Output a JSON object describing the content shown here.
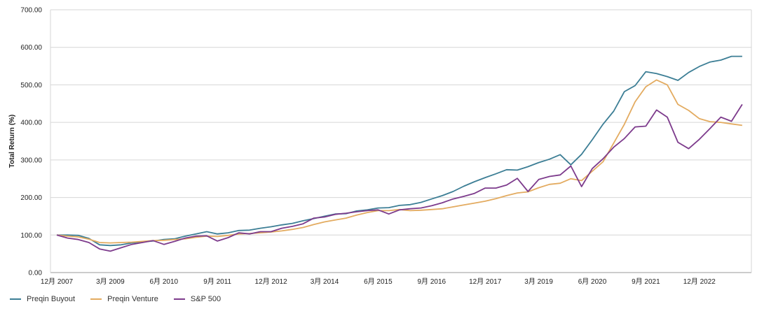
{
  "chart_data": {
    "type": "line",
    "ylabel": "Total Return (%)",
    "ylim": [
      0,
      700
    ],
    "yticks": [
      "0.00",
      "100.00",
      "200.00",
      "300.00",
      "400.00",
      "500.00",
      "600.00",
      "700.00"
    ],
    "xticks": [
      "12月 2007",
      "3月 2009",
      "6月 2010",
      "9月 2011",
      "12月 2012",
      "3月 2014",
      "6月 2015",
      "9月 2016",
      "12月 2017",
      "3月 2019",
      "6月 2020",
      "9月 2021",
      "12月 2022"
    ],
    "legend_position": "bottom-left",
    "grid": true,
    "x": [
      "2007-12",
      "2008-03",
      "2008-06",
      "2008-09",
      "2008-12",
      "2009-03",
      "2009-06",
      "2009-09",
      "2009-12",
      "2010-03",
      "2010-06",
      "2010-09",
      "2010-12",
      "2011-03",
      "2011-06",
      "2011-09",
      "2011-12",
      "2012-03",
      "2012-06",
      "2012-09",
      "2012-12",
      "2013-03",
      "2013-06",
      "2013-09",
      "2013-12",
      "2014-03",
      "2014-06",
      "2014-09",
      "2014-12",
      "2015-03",
      "2015-06",
      "2015-09",
      "2015-12",
      "2016-03",
      "2016-06",
      "2016-09",
      "2016-12",
      "2017-03",
      "2017-06",
      "2017-09",
      "2017-12",
      "2018-03",
      "2018-06",
      "2018-09",
      "2018-12",
      "2019-03",
      "2019-06",
      "2019-09",
      "2019-12",
      "2020-03",
      "2020-06",
      "2020-09",
      "2020-12",
      "2021-03",
      "2021-06",
      "2021-09",
      "2021-12",
      "2022-03",
      "2022-06",
      "2022-09",
      "2022-12",
      "2023-03",
      "2023-06",
      "2023-09",
      "2023-12"
    ],
    "series": [
      {
        "name": "Preqin Buyout",
        "color": "#3c7e95",
        "values": [
          100,
          100,
          99,
          91,
          74,
          72,
          74,
          79,
          82,
          84,
          88,
          90,
          97,
          103,
          109,
          103,
          106,
          112,
          113,
          118,
          122,
          127,
          131,
          138,
          144,
          150,
          156,
          157,
          164,
          167,
          172,
          173,
          179,
          181,
          187,
          196,
          205,
          216,
          230,
          242,
          253,
          263,
          274,
          273,
          282,
          293,
          302,
          314,
          287,
          315,
          354,
          395,
          430,
          482,
          498,
          535,
          530,
          522,
          512,
          533,
          549,
          561,
          566,
          576,
          576
        ]
      },
      {
        "name": "Preqin Venture",
        "color": "#e3ab60",
        "values": [
          100,
          97,
          95,
          89,
          80,
          79,
          80,
          81,
          83,
          85,
          86,
          88,
          90,
          94,
          97,
          96,
          99,
          103,
          104,
          106,
          108,
          111,
          115,
          120,
          128,
          135,
          140,
          145,
          153,
          160,
          165,
          165,
          168,
          165,
          166,
          168,
          170,
          175,
          180,
          185,
          190,
          197,
          205,
          212,
          215,
          226,
          235,
          238,
          250,
          245,
          270,
          295,
          345,
          395,
          455,
          495,
          513,
          500,
          448,
          432,
          410,
          402,
          400,
          396,
          392
        ]
      },
      {
        "name": "S&P 500",
        "color": "#7d3b8c",
        "values": [
          100,
          92,
          88,
          80,
          63,
          57,
          66,
          75,
          80,
          85,
          75,
          83,
          92,
          97,
          98,
          84,
          93,
          106,
          103,
          109,
          109,
          118,
          123,
          130,
          145,
          148,
          155,
          158,
          162,
          165,
          167,
          156,
          167,
          170,
          172,
          178,
          186,
          196,
          203,
          211,
          225,
          225,
          233,
          251,
          216,
          248,
          256,
          260,
          284,
          229,
          277,
          303,
          334,
          357,
          388,
          390,
          433,
          414,
          347,
          330,
          355,
          384,
          414,
          403,
          448
        ]
      }
    ]
  }
}
